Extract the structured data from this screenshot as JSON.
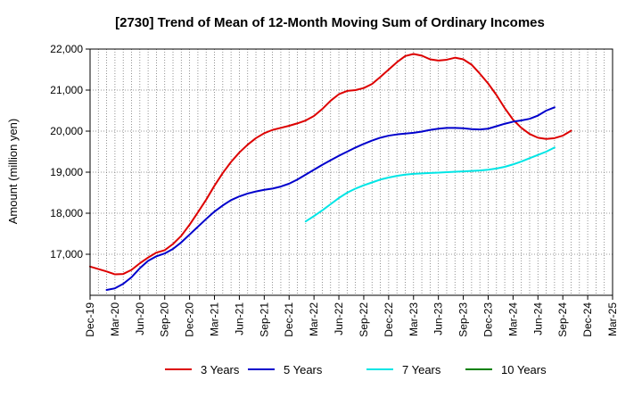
{
  "chart_data": {
    "type": "line",
    "title": "[2730]  Trend of Mean of 12-Month Moving Sum of Ordinary Incomes",
    "xlabel": "",
    "ylabel": "Amount (million yen)",
    "ylim": [
      16000,
      22000
    ],
    "y_ticks": [
      17000,
      18000,
      19000,
      20000,
      21000,
      22000
    ],
    "y_tick_labels": [
      "17,000",
      "18,000",
      "19,000",
      "20,000",
      "21,000",
      "22,000"
    ],
    "x_tick_labels": [
      "Dec-19",
      "Mar-20",
      "Jun-20",
      "Sep-20",
      "Dec-20",
      "Mar-21",
      "Jun-21",
      "Sep-21",
      "Dec-21",
      "Mar-22",
      "Jun-22",
      "Sep-22",
      "Dec-22",
      "Mar-23",
      "Jun-23",
      "Sep-23",
      "Dec-23",
      "Mar-24",
      "Jun-24",
      "Sep-24",
      "Dec-24",
      "Mar-25"
    ],
    "grid": true,
    "legend_position": "bottom",
    "series": [
      {
        "name": "3 Years",
        "color": "#dd0000",
        "start_index": 0,
        "values": [
          16700,
          16640,
          16580,
          16510,
          16520,
          16620,
          16780,
          16920,
          17040,
          17100,
          17250,
          17450,
          17720,
          18020,
          18330,
          18670,
          18980,
          19250,
          19480,
          19670,
          19830,
          19950,
          20030,
          20080,
          20130,
          20190,
          20260,
          20370,
          20540,
          20740,
          20900,
          20980,
          21000,
          21050,
          21150,
          21320,
          21500,
          21680,
          21830,
          21880,
          21840,
          21750,
          21720,
          21740,
          21790,
          21750,
          21620,
          21400,
          21160,
          20880,
          20560,
          20280,
          20080,
          19930,
          19840,
          19810,
          19830,
          19890,
          20010
        ]
      },
      {
        "name": "5 Years",
        "color": "#0000cc",
        "start_index": 2,
        "values": [
          16130,
          16170,
          16280,
          16440,
          16660,
          16840,
          16950,
          17020,
          17130,
          17290,
          17480,
          17670,
          17860,
          18040,
          18190,
          18320,
          18410,
          18480,
          18530,
          18570,
          18600,
          18650,
          18720,
          18820,
          18940,
          19060,
          19180,
          19290,
          19400,
          19500,
          19600,
          19690,
          19770,
          19840,
          19890,
          19920,
          19940,
          19960,
          19990,
          20030,
          20060,
          20080,
          20080,
          20070,
          20050,
          20040,
          20060,
          20120,
          20180,
          20230,
          20260,
          20300,
          20380,
          20500,
          20580
        ]
      },
      {
        "name": "7 Years",
        "color": "#00e5e5",
        "start_index": 26,
        "values": [
          17800,
          17930,
          18070,
          18220,
          18370,
          18500,
          18600,
          18680,
          18750,
          18820,
          18870,
          18910,
          18940,
          18960,
          18970,
          18980,
          18990,
          19000,
          19010,
          19020,
          19030,
          19040,
          19060,
          19090,
          19130,
          19190,
          19260,
          19340,
          19420,
          19500,
          19600
        ]
      },
      {
        "name": "10 Years",
        "color": "#008000",
        "start_index": 0,
        "values": []
      }
    ]
  }
}
